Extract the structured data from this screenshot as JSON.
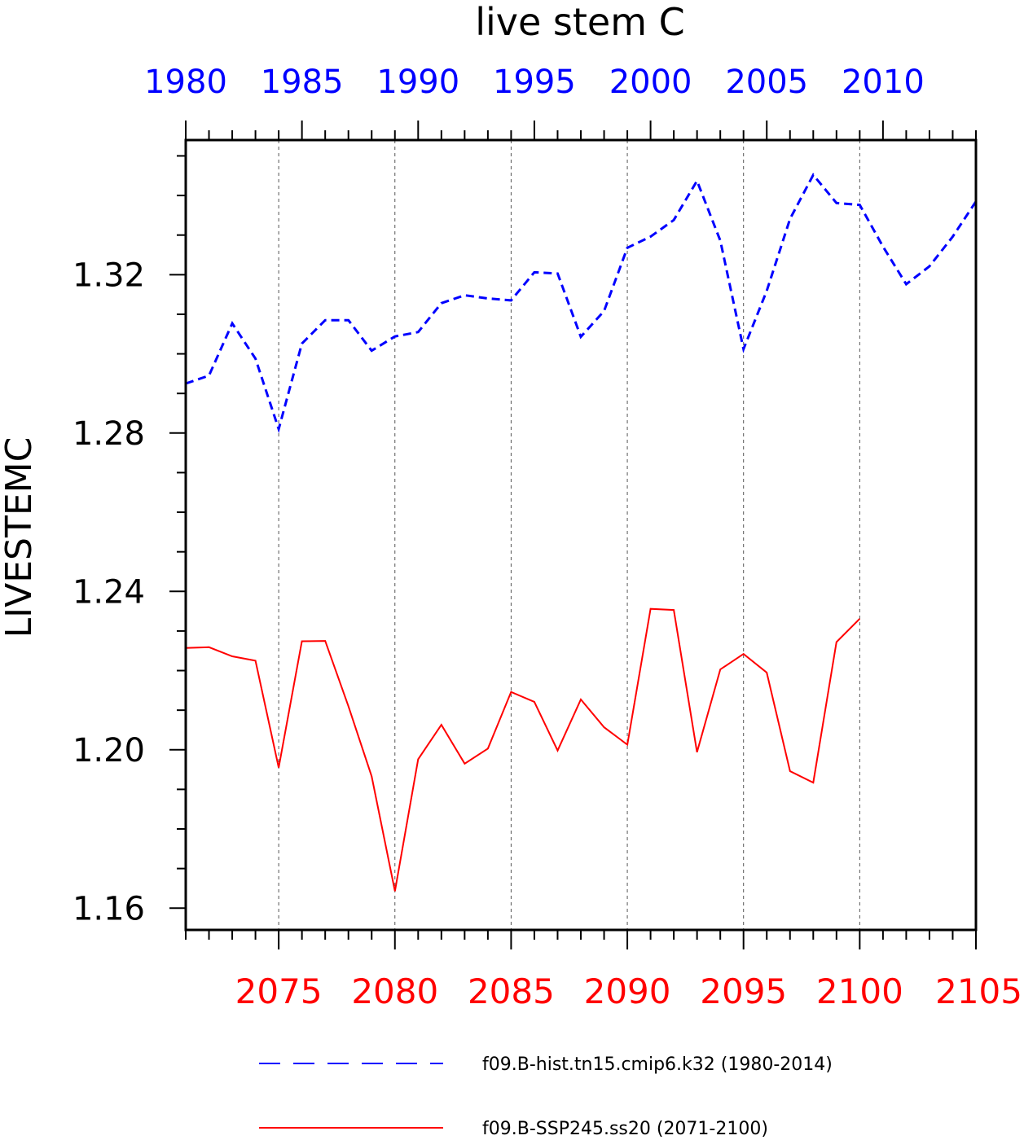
{
  "chart_data": {
    "type": "line",
    "title": "live stem C",
    "ylabel": "LIVESTEMC",
    "xlabel": "",
    "ylim": [
      1.1545,
      1.354
    ],
    "y_ticks": [
      "1.16",
      "1.20",
      "1.24",
      "1.28",
      "1.32"
    ],
    "y_tick_values": [
      1.16,
      1.2,
      1.24,
      1.28,
      1.32
    ],
    "grid": "vertical dashed lines at major ticks",
    "top_axis": {
      "color": "#0000ff",
      "xlim": [
        1980,
        2014
      ],
      "tick_labels": [
        "1980",
        "1985",
        "1990",
        "1995",
        "2000",
        "2005",
        "2010"
      ],
      "tick_values": [
        1980,
        1985,
        1990,
        1995,
        2000,
        2005,
        2010
      ]
    },
    "bottom_axis": {
      "color": "#ff0000",
      "xlim": [
        2071,
        2105
      ],
      "tick_labels": [
        "2075",
        "2080",
        "2085",
        "2090",
        "2095",
        "2100",
        "2105"
      ],
      "tick_values": [
        2075,
        2080,
        2085,
        2090,
        2095,
        2100,
        2105
      ]
    },
    "series": [
      {
        "name": "f09.B-hist.tn15.cmip6.k32 (1980-2014)",
        "color": "#0000ff",
        "style": "dashed",
        "axis": "top",
        "x": [
          1980,
          1981,
          1982,
          1983,
          1984,
          1985,
          1986,
          1987,
          1988,
          1989,
          1990,
          1991,
          1992,
          1993,
          1994,
          1995,
          1996,
          1997,
          1998,
          1999,
          2000,
          2001,
          2002,
          2003,
          2004,
          2005,
          2006,
          2007,
          2008,
          2009,
          2010,
          2011,
          2012,
          2013,
          2014
        ],
        "values": [
          1.2925,
          1.2945,
          1.3077,
          1.2988,
          1.281,
          1.3026,
          1.3085,
          1.3085,
          1.3008,
          1.3044,
          1.3055,
          1.3128,
          1.3148,
          1.314,
          1.3135,
          1.3206,
          1.3203,
          1.3043,
          1.3108,
          1.3268,
          1.3296,
          1.3338,
          1.3437,
          1.3286,
          1.3012,
          1.3159,
          1.3341,
          1.3452,
          1.3381,
          1.3376,
          1.3271,
          1.3176,
          1.3221,
          1.3296,
          1.3385
        ]
      },
      {
        "name": "f09.B-SSP245.ss20 (2071-2100)",
        "color": "#ff0000",
        "style": "solid",
        "axis": "bottom",
        "x": [
          2071,
          2072,
          2073,
          2074,
          2075,
          2076,
          2077,
          2078,
          2079,
          2080,
          2081,
          2082,
          2083,
          2084,
          2085,
          2086,
          2087,
          2088,
          2089,
          2090,
          2091,
          2092,
          2093,
          2094,
          2095,
          2096,
          2097,
          2098,
          2099,
          2100
        ],
        "values": [
          1.2257,
          1.2259,
          1.2236,
          1.2225,
          1.1955,
          1.2274,
          1.2275,
          1.211,
          1.1933,
          1.1643,
          1.1976,
          1.2063,
          1.1965,
          1.2003,
          1.2146,
          1.2121,
          1.1998,
          1.2127,
          1.2057,
          1.2013,
          1.2356,
          1.2353,
          1.1994,
          1.2203,
          1.2242,
          1.2195,
          1.1946,
          1.1917,
          1.2272,
          1.2331
        ]
      }
    ],
    "legend": {
      "placement": "bottom"
    }
  }
}
